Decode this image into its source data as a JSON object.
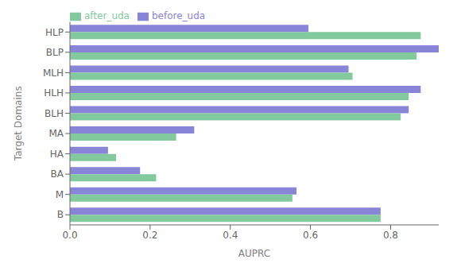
{
  "chart_data": {
    "type": "bar",
    "orientation": "horizontal",
    "categories": [
      "B",
      "M",
      "BA",
      "HA",
      "MA",
      "BLH",
      "HLH",
      "MLH",
      "BLP",
      "HLP"
    ],
    "series": [
      {
        "name": "before_uda",
        "values": [
          0.775,
          0.565,
          0.175,
          0.095,
          0.31,
          0.845,
          0.875,
          0.695,
          0.92,
          0.595
        ]
      },
      {
        "name": "after_uda",
        "values": [
          0.775,
          0.555,
          0.215,
          0.115,
          0.265,
          0.825,
          0.845,
          0.705,
          0.865,
          0.875
        ]
      }
    ],
    "xlabel": "AUPRC",
    "ylabel": "Target Domains",
    "xlim": [
      0.0,
      0.92
    ],
    "xticks": [
      {
        "value": 0.0,
        "label": "0.0"
      },
      0.2,
      0.4,
      0.6,
      0.8
    ],
    "grid": false,
    "legend": "upper left"
  }
}
